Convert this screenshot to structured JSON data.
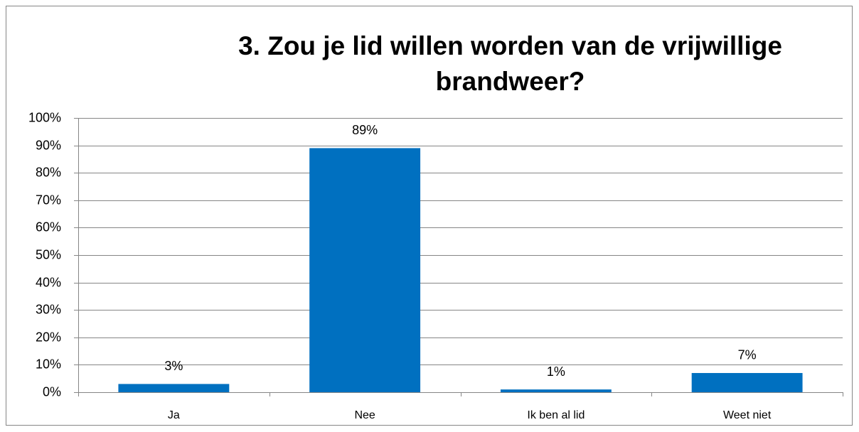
{
  "chart_data": {
    "type": "bar",
    "title": "3. Zou je lid willen worden van de vrijwillige brandweer?",
    "categories": [
      "Ja",
      "Nee",
      "Ik ben al lid",
      "Weet niet"
    ],
    "values": [
      3,
      89,
      1,
      7
    ],
    "value_labels": [
      "3%",
      "89%",
      "1%",
      "7%"
    ],
    "color": "#0070c0",
    "ylim": [
      0,
      100
    ],
    "yticks": [
      {
        "value": 0,
        "label": "0%"
      },
      {
        "value": 10,
        "label": "10%"
      },
      {
        "value": 20,
        "label": "20%"
      },
      {
        "value": 30,
        "label": "30%"
      },
      {
        "value": 40,
        "label": "40%"
      },
      {
        "value": 50,
        "label": "50%"
      },
      {
        "value": 60,
        "label": "60%"
      },
      {
        "value": 70,
        "label": "70%"
      },
      {
        "value": 80,
        "label": "80%"
      },
      {
        "value": 90,
        "label": "90%"
      },
      {
        "value": 100,
        "label": "100%"
      }
    ],
    "grid": true
  }
}
